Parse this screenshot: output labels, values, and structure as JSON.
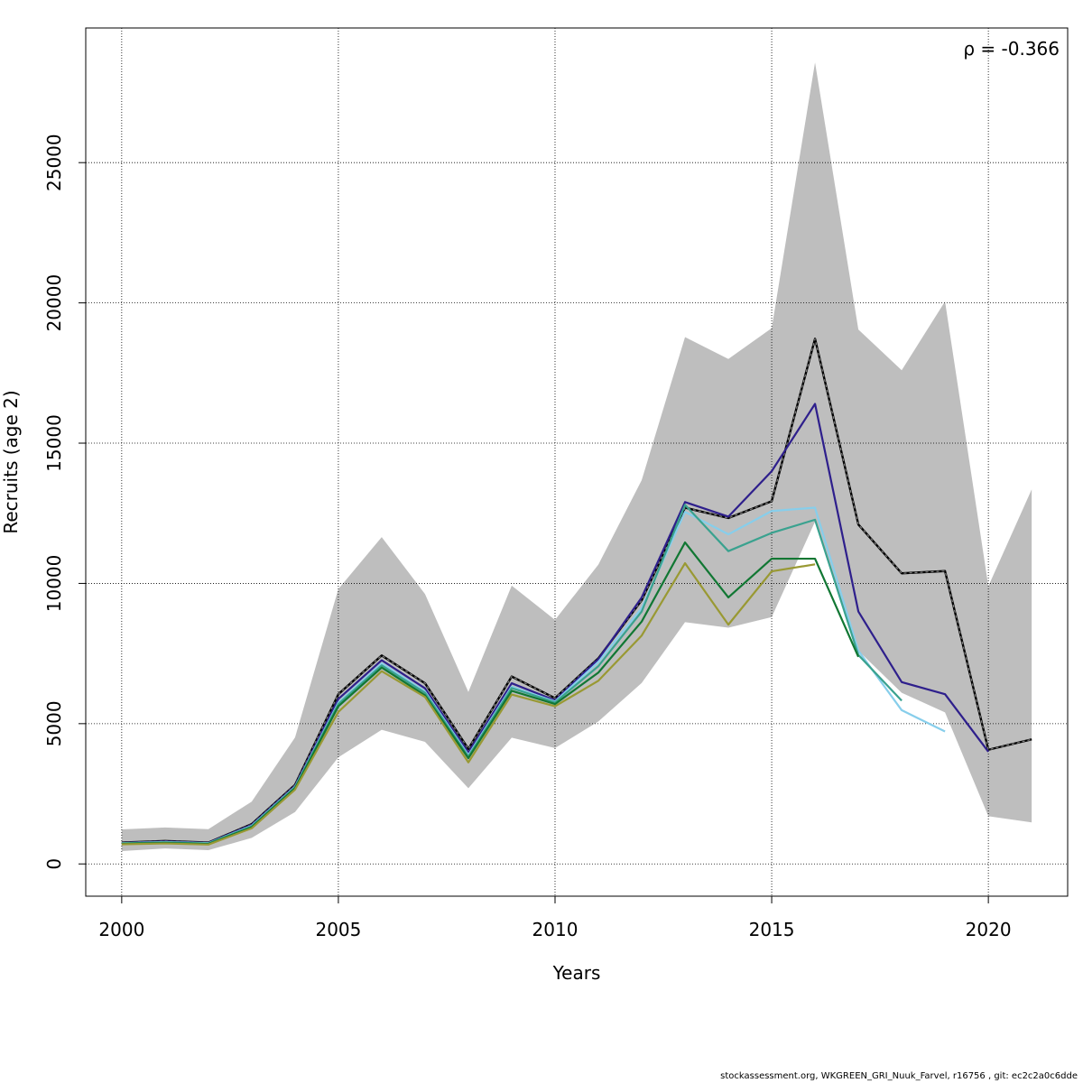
{
  "chart_data": {
    "type": "line",
    "title": "",
    "xlabel": "Years",
    "ylabel": "Recruits (age 2)",
    "xlim": [
      1999.17,
      2021.83
    ],
    "ylim": [
      -1150,
      29800
    ],
    "x_ticks": [
      2000,
      2005,
      2010,
      2015,
      2020
    ],
    "y_ticks": [
      0,
      5000,
      10000,
      15000,
      20000,
      25000
    ],
    "grid": true,
    "annotation": "ρ = -0.366",
    "confidence_band": {
      "x": [
        2000,
        2001,
        2002,
        2003,
        2004,
        2005,
        2006,
        2007,
        2008,
        2009,
        2010,
        2011,
        2012,
        2013,
        2014,
        2015,
        2016,
        2017,
        2018,
        2019,
        2020,
        2021
      ],
      "upper": [
        1230,
        1300,
        1240,
        2220,
        4510,
        9800,
        11650,
        9620,
        6130,
        9920,
        8700,
        10670,
        13680,
        18780,
        18000,
        19100,
        28570,
        19050,
        17600,
        20050,
        9900,
        13350
      ],
      "lower": [
        460,
        550,
        490,
        930,
        1850,
        3800,
        4780,
        4350,
        2700,
        4500,
        4130,
        5080,
        6450,
        8620,
        8420,
        8800,
        12200,
        7600,
        6100,
        5400,
        1700,
        1480
      ],
      "color": "#bebebe"
    },
    "series": [
      {
        "color": "#000000",
        "dashed": true,
        "x": [
          2000,
          2001,
          2002,
          2003,
          2004,
          2005,
          2006,
          2007,
          2008,
          2009,
          2010,
          2011,
          2012,
          2013,
          2014,
          2015,
          2016,
          2017,
          2018,
          2019,
          2020,
          2021
        ],
        "values": [
          760,
          820,
          760,
          1420,
          2820,
          6050,
          7430,
          6440,
          4100,
          6680,
          5910,
          7330,
          9400,
          12700,
          12330,
          12930,
          18720,
          12100,
          10360,
          10440,
          4070,
          4440
        ]
      },
      {
        "color": "#2e1f8c",
        "x": [
          2000,
          2001,
          2002,
          2003,
          2004,
          2005,
          2006,
          2007,
          2008,
          2009,
          2010,
          2011,
          2012,
          2013,
          2014,
          2015,
          2016,
          2017,
          2018,
          2019,
          2020
        ],
        "values": [
          750,
          800,
          750,
          1390,
          2780,
          5880,
          7260,
          6260,
          3970,
          6440,
          5830,
          7300,
          9500,
          12900,
          12380,
          14000,
          16400,
          9000,
          6480,
          6050,
          4000
        ]
      },
      {
        "color": "#87ceeb",
        "x": [
          2000,
          2001,
          2002,
          2003,
          2004,
          2005,
          2006,
          2007,
          2008,
          2009,
          2010,
          2011,
          2012,
          2013,
          2014,
          2015,
          2016,
          2017,
          2018,
          2019
        ],
        "values": [
          740,
          780,
          740,
          1360,
          2750,
          5750,
          7150,
          6150,
          3880,
          6320,
          5790,
          7200,
          9120,
          12550,
          11750,
          12580,
          12700,
          7600,
          5480,
          4720
        ]
      },
      {
        "color": "#3aa28f",
        "x": [
          2000,
          2001,
          2002,
          2003,
          2004,
          2005,
          2006,
          2007,
          2008,
          2009,
          2010,
          2011,
          2012,
          2013,
          2014,
          2015,
          2016,
          2017,
          2018
        ],
        "values": [
          730,
          770,
          730,
          1340,
          2730,
          5700,
          7080,
          6100,
          3830,
          6270,
          5760,
          7050,
          9000,
          12800,
          11150,
          11800,
          12270,
          7450,
          5820
        ]
      },
      {
        "color": "#117733",
        "x": [
          2000,
          2001,
          2002,
          2003,
          2004,
          2005,
          2006,
          2007,
          2008,
          2009,
          2010,
          2011,
          2012,
          2013,
          2014,
          2015,
          2016,
          2017
        ],
        "values": [
          720,
          750,
          710,
          1310,
          2700,
          5620,
          7000,
          6010,
          3770,
          6170,
          5700,
          6820,
          8640,
          11460,
          9500,
          10880,
          10880,
          7380
        ]
      },
      {
        "color": "#999933",
        "x": [
          2000,
          2001,
          2002,
          2003,
          2004,
          2005,
          2006,
          2007,
          2008,
          2009,
          2010,
          2011,
          2012,
          2013,
          2014,
          2015,
          2016
        ],
        "values": [
          700,
          730,
          690,
          1270,
          2650,
          5420,
          6870,
          5950,
          3620,
          6040,
          5620,
          6530,
          8140,
          10720,
          8530,
          10430,
          10680
        ]
      }
    ]
  },
  "footer": "stockassessment.org, WKGREEN_GRI_Nuuk_Farvel, r16756 , git: ec2c2a0c6dde"
}
